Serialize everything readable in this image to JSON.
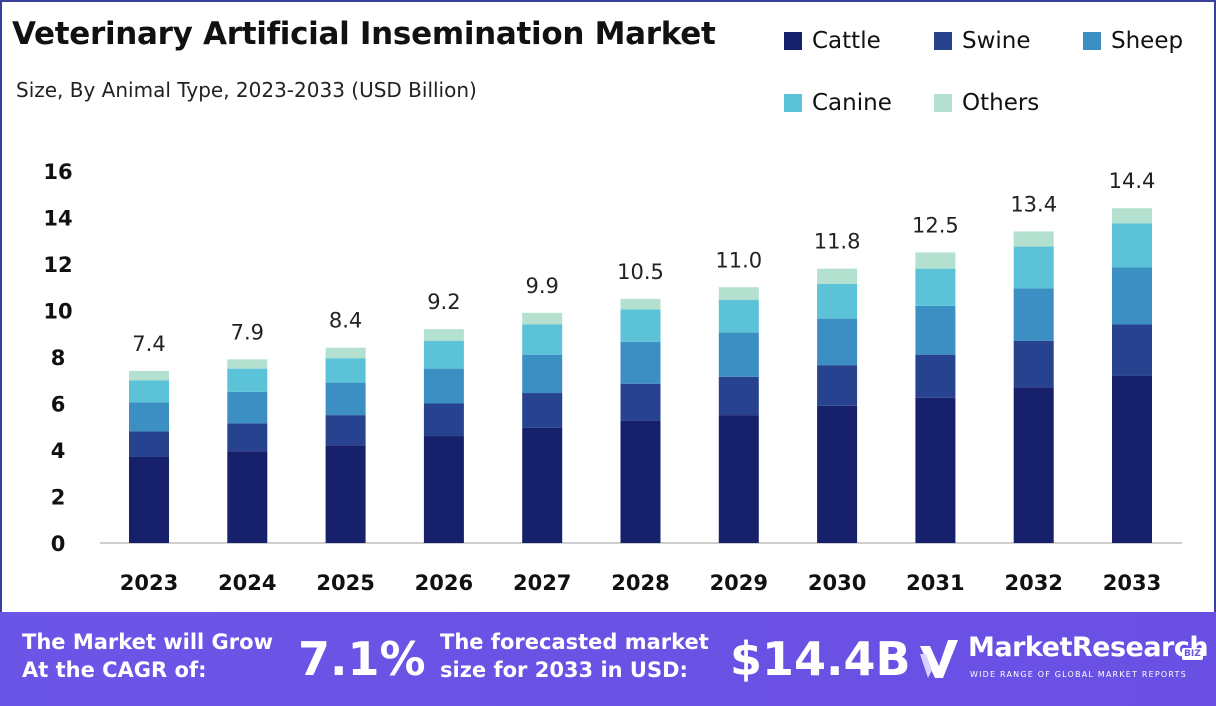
{
  "header": {
    "title": "Veterinary Artificial Insemination Market",
    "subtitle": "Size, By Animal Type, 2023-2033 (USD Billion)"
  },
  "colors": {
    "cattle": "#16206b",
    "swine": "#27428f",
    "sheep": "#3c8fc3",
    "canine": "#5bc2d8",
    "others": "#b3e0cf",
    "footer_bg": "#6a4fe3"
  },
  "chart_data": {
    "type": "bar",
    "stacked": true,
    "categories": [
      "2023",
      "2024",
      "2025",
      "2026",
      "2027",
      "2028",
      "2029",
      "2030",
      "2031",
      "2032",
      "2033"
    ],
    "totals": [
      7.4,
      7.9,
      8.4,
      9.2,
      9.9,
      10.5,
      11.0,
      11.8,
      12.5,
      13.4,
      14.4
    ],
    "total_labels": [
      "7.4",
      "7.9",
      "8.4",
      "9.2",
      "9.9",
      "10.5",
      "11.0",
      "11.8",
      "12.5",
      "13.4",
      "14.4"
    ],
    "series": [
      {
        "name": "Cattle",
        "values": [
          3.7,
          3.95,
          4.2,
          4.6,
          4.95,
          5.25,
          5.5,
          5.9,
          6.25,
          6.7,
          7.2
        ]
      },
      {
        "name": "Swine",
        "values": [
          1.1,
          1.2,
          1.3,
          1.4,
          1.5,
          1.6,
          1.65,
          1.75,
          1.85,
          2.0,
          2.2
        ]
      },
      {
        "name": "Sheep",
        "values": [
          1.25,
          1.35,
          1.4,
          1.5,
          1.65,
          1.8,
          1.9,
          2.0,
          2.1,
          2.25,
          2.45
        ]
      },
      {
        "name": "Canine",
        "values": [
          0.95,
          1.0,
          1.05,
          1.2,
          1.3,
          1.4,
          1.4,
          1.5,
          1.6,
          1.8,
          1.9
        ]
      },
      {
        "name": "Others",
        "values": [
          0.4,
          0.4,
          0.45,
          0.5,
          0.5,
          0.45,
          0.55,
          0.65,
          0.7,
          0.65,
          0.65
        ]
      }
    ],
    "ylim": [
      0,
      16
    ],
    "yticks": [
      0,
      2,
      4,
      6,
      8,
      10,
      12,
      14,
      16
    ],
    "grid": false,
    "legend_position": "top-right"
  },
  "footer": {
    "cagr_text": "The Market will Grow At the CAGR of:",
    "cagr_value": "7.1%",
    "forecast_text": "The forecasted market size for 2033 in USD:",
    "forecast_value": "$14.4B"
  },
  "logo": {
    "name": "MarketResearch",
    "badge": "BIZ",
    "tagline": "WIDE RANGE OF GLOBAL MARKET REPORTS",
    "icon": "market-research-logo-icon"
  }
}
